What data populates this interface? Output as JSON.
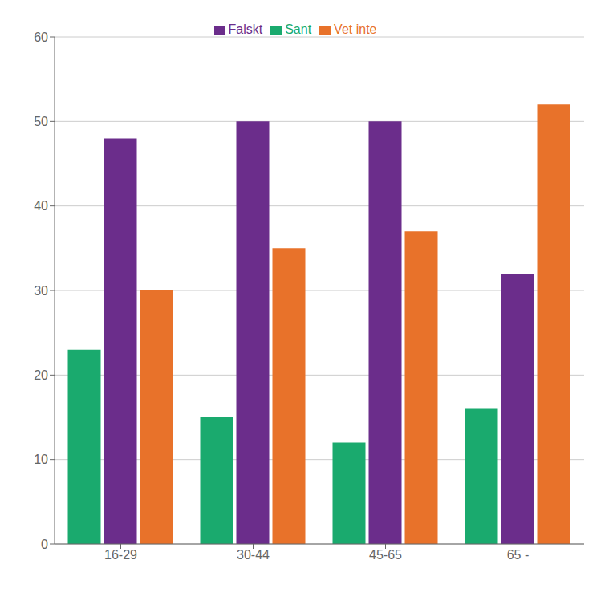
{
  "chart_data": {
    "type": "bar",
    "categories": [
      "16-29",
      "30-44",
      "45-65",
      "65 -"
    ],
    "series": [
      {
        "name": "Sant",
        "color": "#1aaa6e",
        "values": [
          23,
          15,
          12,
          16
        ]
      },
      {
        "name": "Falskt",
        "color": "#6b2d8b",
        "values": [
          48,
          50,
          50,
          32
        ]
      },
      {
        "name": "Vet inte",
        "color": "#e8722a",
        "values": [
          30,
          35,
          37,
          52
        ]
      }
    ],
    "ylim": [
      0,
      60
    ],
    "yticks": [
      0,
      10,
      20,
      30,
      40,
      50,
      60
    ],
    "grid": true,
    "legend": "top"
  }
}
